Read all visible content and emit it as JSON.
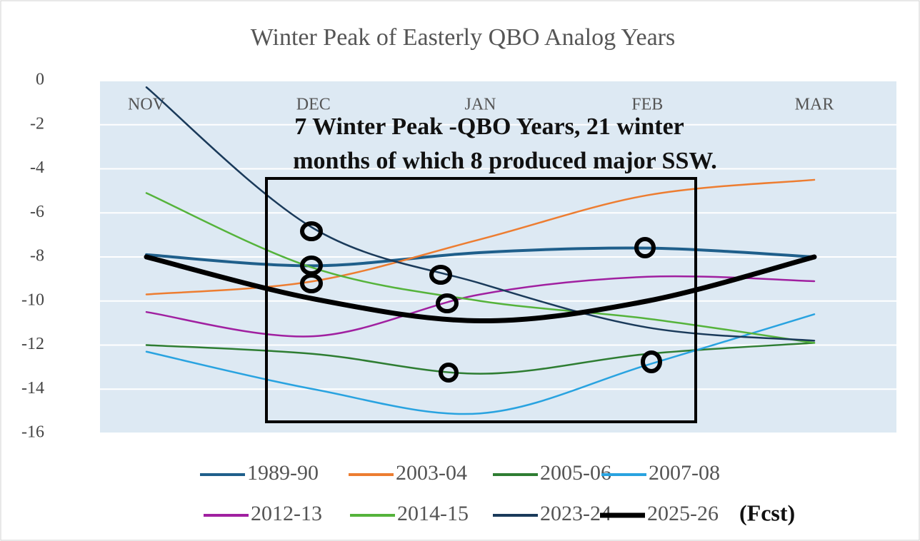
{
  "chart_data": {
    "type": "line",
    "title": "Winter Peak of Easterly QBO Analog Years",
    "categories": [
      "NOV",
      "DEC",
      "JAN",
      "FEB",
      "MAR"
    ],
    "ylim": [
      -16,
      0
    ],
    "yticks": [
      0,
      -2,
      -4,
      -6,
      -8,
      -10,
      -12,
      -14,
      -16
    ],
    "grid": true,
    "smooth": true,
    "annotation": [
      "7 Winter Peak -QBO Years, 21 winter",
      "months of which 8 produced major SSW."
    ],
    "legend_note": "(Fcst)",
    "series": [
      {
        "name": "1989-90",
        "color": "#1f5f8b",
        "width": 4,
        "values": [
          -7.9,
          -8.4,
          -7.8,
          -7.6,
          -8.0
        ]
      },
      {
        "name": "2003-04",
        "color": "#ed7d31",
        "width": 2.5,
        "values": [
          -9.7,
          -9.1,
          -7.2,
          -5.2,
          -4.5
        ]
      },
      {
        "name": "2005-06",
        "color": "#2e7d32",
        "width": 2.5,
        "values": [
          -12.0,
          -12.4,
          -13.3,
          -12.4,
          -11.9
        ]
      },
      {
        "name": "2007-08",
        "color": "#29a3e0",
        "width": 2.5,
        "values": [
          -12.3,
          -14.0,
          -15.1,
          -12.9,
          -10.6
        ]
      },
      {
        "name": "2012-13",
        "color": "#a020a0",
        "width": 2.5,
        "values": [
          -10.5,
          -11.6,
          -9.7,
          -8.9,
          -9.1
        ]
      },
      {
        "name": "2014-15",
        "color": "#55b33b",
        "width": 2.5,
        "values": [
          -5.1,
          -8.5,
          -10.0,
          -10.8,
          -11.9
        ]
      },
      {
        "name": "2023-24",
        "color": "#1a3a5a",
        "width": 2.5,
        "values": [
          -0.3,
          -6.7,
          -9.2,
          -11.2,
          -11.8
        ]
      },
      {
        "name": "2025-26",
        "color": "#000000",
        "width": 7,
        "values": [
          -8.0,
          -9.9,
          -10.9,
          -10.0,
          -8.0
        ]
      }
    ]
  }
}
